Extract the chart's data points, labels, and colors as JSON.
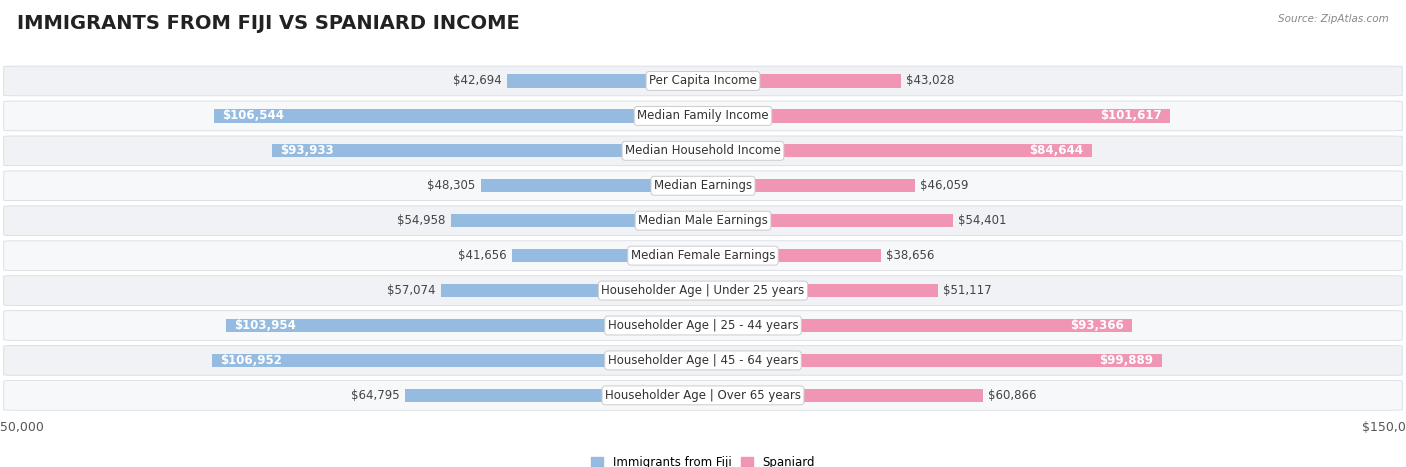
{
  "title": "IMMIGRANTS FROM FIJI VS SPANIARD INCOME",
  "source": "Source: ZipAtlas.com",
  "categories": [
    "Per Capita Income",
    "Median Family Income",
    "Median Household Income",
    "Median Earnings",
    "Median Male Earnings",
    "Median Female Earnings",
    "Householder Age | Under 25 years",
    "Householder Age | 25 - 44 years",
    "Householder Age | 45 - 64 years",
    "Householder Age | Over 65 years"
  ],
  "fiji_values": [
    42694,
    106544,
    93933,
    48305,
    54958,
    41656,
    57074,
    103954,
    106952,
    64795
  ],
  "spaniard_values": [
    43028,
    101617,
    84644,
    46059,
    54401,
    38656,
    51117,
    93366,
    99889,
    60866
  ],
  "fiji_color": "#95bce0",
  "spaniard_color": "#f096b4",
  "fiji_label": "Immigrants from Fiji",
  "spaniard_label": "Spaniard",
  "max_value": 150000,
  "background_color": "#ffffff",
  "row_color_odd": "#f0f2f5",
  "row_color_even": "#f7f8fa",
  "row_border_color": "#d8dce2",
  "title_fontsize": 14,
  "label_fontsize": 8.5,
  "value_fontsize": 8.5,
  "axis_label_fontsize": 9,
  "large_threshold": 75000
}
